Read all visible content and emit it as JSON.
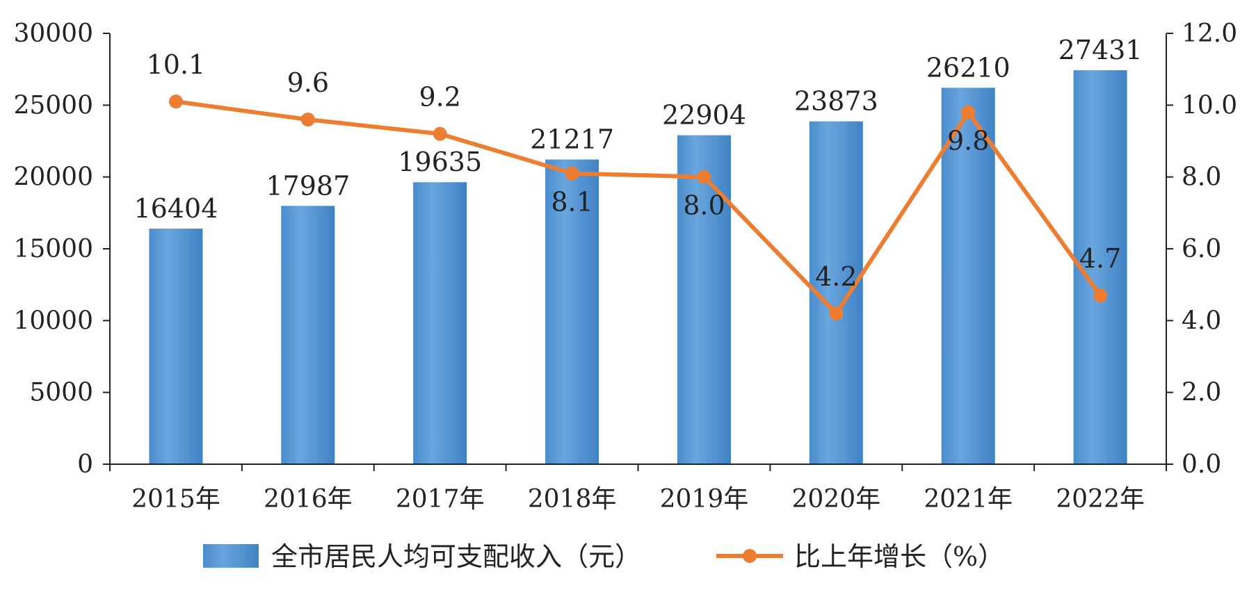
{
  "chart_data": {
    "type": "bar",
    "categories": [
      "2015年",
      "2016年",
      "2017年",
      "2018年",
      "2019年",
      "2020年",
      "2021年",
      "2022年"
    ],
    "series": [
      {
        "name": "全市居民人均可支配收入（元）",
        "type": "bar",
        "axis": "left",
        "values": [
          16404,
          17987,
          19635,
          21217,
          22904,
          23873,
          26210,
          27431
        ],
        "data_labels": [
          "16404",
          "17987",
          "19635",
          "21217",
          "22904",
          "23873",
          "26210",
          "27431"
        ]
      },
      {
        "name": "比上年增长（%）",
        "type": "line",
        "axis": "right",
        "values": [
          10.1,
          9.6,
          9.2,
          8.1,
          8.0,
          4.2,
          9.8,
          4.7
        ],
        "data_labels": [
          "10.1",
          "9.6",
          "9.2",
          "8.1",
          "8.0",
          "4.2",
          "9.8",
          "4.7"
        ]
      }
    ],
    "y_left": {
      "range": [
        0,
        30000
      ],
      "ticks": [
        "0",
        "5000",
        "10000",
        "15000",
        "20000",
        "25000",
        "30000"
      ]
    },
    "y_right": {
      "range": [
        0,
        12
      ],
      "ticks": [
        "0.0",
        "2.0",
        "4.0",
        "6.0",
        "8.0",
        "10.0",
        "12.0"
      ]
    },
    "grid": false,
    "legend_position": "bottom",
    "colors": {
      "bar": "#5b9bd5",
      "line": "#ed7d31",
      "axis": "#222222"
    }
  }
}
